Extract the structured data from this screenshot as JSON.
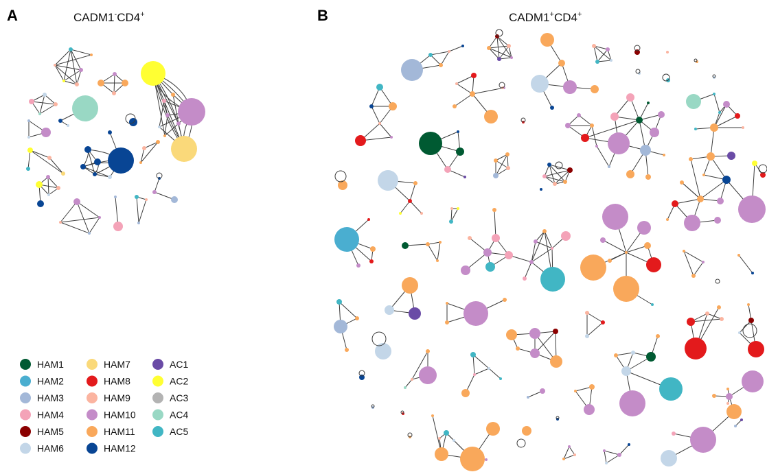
{
  "panels": {
    "a": {
      "letter": "A",
      "title_prefix": "CADM1",
      "title_sup": "-",
      "title_mid": "CD4",
      "title_sup2": "+"
    },
    "b": {
      "letter": "B",
      "title_prefix": "CADM1",
      "title_sup": "+",
      "title_mid": "CD4",
      "title_sup2": "+"
    }
  },
  "legend": [
    {
      "key": "HAM1",
      "label": "HAM1",
      "color": "#005a32"
    },
    {
      "key": "HAM2",
      "label": "HAM2",
      "color": "#4aaed0"
    },
    {
      "key": "HAM3",
      "label": "HAM3",
      "color": "#a3b8d8"
    },
    {
      "key": "HAM4",
      "label": "HAM4",
      "color": "#f4a3b8"
    },
    {
      "key": "HAM5",
      "label": "HAM5",
      "color": "#8b0000"
    },
    {
      "key": "HAM6",
      "label": "HAM6",
      "color": "#c3d6e8"
    },
    {
      "key": "HAM7",
      "label": "HAM7",
      "color": "#fad97a"
    },
    {
      "key": "HAM8",
      "label": "HAM8",
      "color": "#e31a1c"
    },
    {
      "key": "HAM9",
      "label": "HAM9",
      "color": "#fbb4a0"
    },
    {
      "key": "HAM10",
      "label": "HAM10",
      "color": "#c48cc8"
    },
    {
      "key": "HAM11",
      "label": "HAM11",
      "color": "#f9a85b"
    },
    {
      "key": "HAM12",
      "label": "HAM12",
      "color": "#084594"
    },
    {
      "key": "AC1",
      "label": "AC1",
      "color": "#6a4ba6"
    },
    {
      "key": "AC2",
      "label": "AC2",
      "color": "#ffff33"
    },
    {
      "key": "AC3",
      "label": "AC3",
      "color": "#b3b3b3"
    },
    {
      "key": "AC4",
      "label": "AC4",
      "color": "#99d8c4"
    },
    {
      "key": "AC5",
      "label": "AC5",
      "color": "#41b6c4"
    }
  ]
}
